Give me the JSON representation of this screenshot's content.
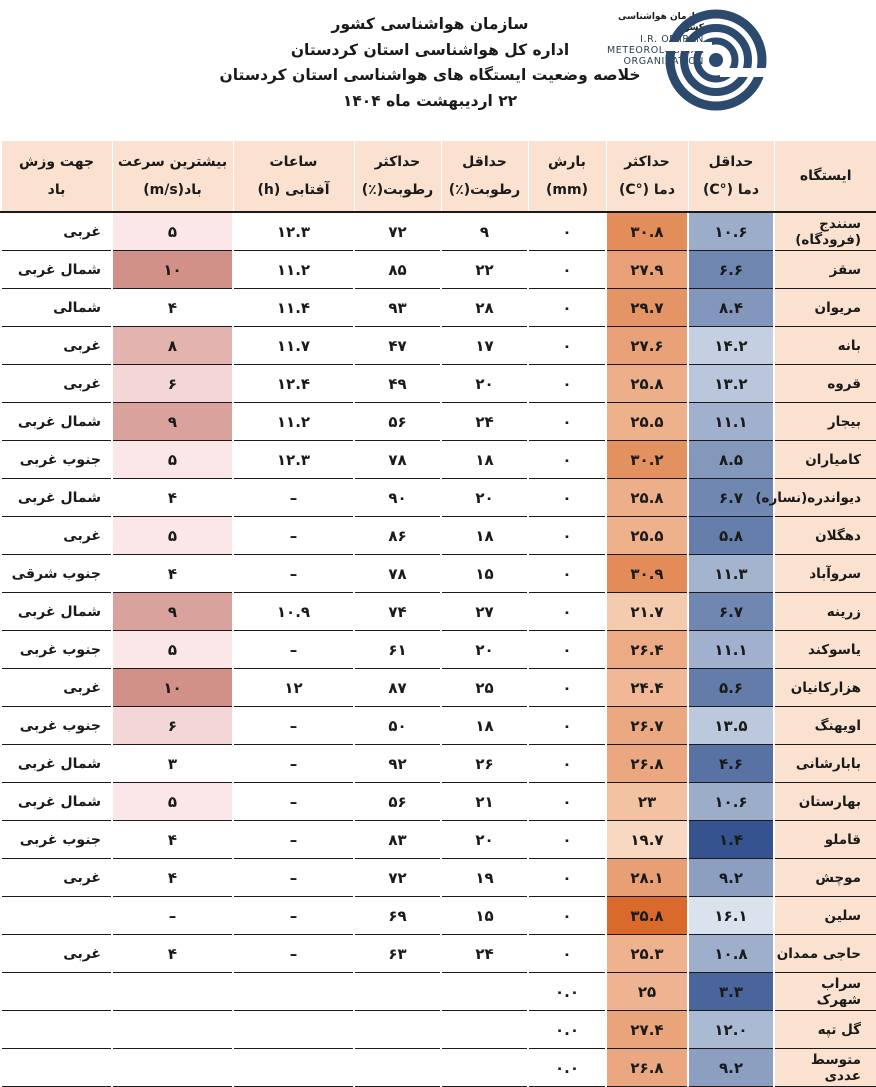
{
  "header": {
    "org": "سازمان هواشناسی کشور",
    "dept": "اداره کل هواشناسی استان کردستان",
    "title": "خلاصه وضعیت ایستگاه های هواشناسی استان کردستان",
    "date": "۲۲ اردیبهشت ماه ۱۴۰۴",
    "logo_fa": "سازمان هواشناسی کشور",
    "logo_en_1": "I.R. OF IRAN",
    "logo_en_2": "METEOROLOGICAL",
    "logo_en_3": "ORGANIZATION"
  },
  "columns": [
    {
      "l1": "ایستگاه",
      "l2": ""
    },
    {
      "l1": "حداقل",
      "l2": "دما (°C)"
    },
    {
      "l1": "حداکثر",
      "l2": "دما (°C)"
    },
    {
      "l1": "بارش",
      "l2": "(mm)"
    },
    {
      "l1": "حداقل",
      "l2": "رطوبت(٪)"
    },
    {
      "l1": "حداکثر",
      "l2": "رطوبت(٪)"
    },
    {
      "l1": "ساعات",
      "l2": "آفتابی (h)"
    },
    {
      "l1": "بیشترین سرعت",
      "l2": "باد(m/s)"
    },
    {
      "l1": "جهت وزش",
      "l2": "باد"
    }
  ],
  "colors": {
    "header_bg": "#fbe2d0",
    "min_temp_scale": [
      "#e4ebf3",
      "#2f4f8c"
    ],
    "max_temp_scale": [
      "#fce4d2",
      "#d9692a"
    ],
    "wind_scale": [
      "#fbe7e8",
      "#d19189"
    ]
  },
  "rows": [
    {
      "station": "سنندج (فرودگاه)",
      "tmin": "۱۰.۶",
      "tmax": "۳۰.۸",
      "rain": "۰",
      "rhmin": "۹",
      "rhmax": "۷۲",
      "sun": "۱۲.۳",
      "wind": "۵",
      "dir": "غربی",
      "tmin_v": 10.6,
      "tmax_v": 30.8,
      "wind_v": 5
    },
    {
      "station": "سقز",
      "tmin": "۶.۶",
      "tmax": "۲۷.۹",
      "rain": "۰",
      "rhmin": "۲۲",
      "rhmax": "۸۵",
      "sun": "۱۱.۲",
      "wind": "۱۰",
      "dir": "شمال غربی",
      "tmin_v": 6.6,
      "tmax_v": 27.9,
      "wind_v": 10
    },
    {
      "station": "مریوان",
      "tmin": "۸.۴",
      "tmax": "۲۹.۷",
      "rain": "۰",
      "rhmin": "۲۸",
      "rhmax": "۹۳",
      "sun": "۱۱.۴",
      "wind": "۴",
      "dir": "شمالی",
      "tmin_v": 8.4,
      "tmax_v": 29.7,
      "wind_v": 4
    },
    {
      "station": "بانه",
      "tmin": "۱۴.۲",
      "tmax": "۲۷.۶",
      "rain": "۰",
      "rhmin": "۱۷",
      "rhmax": "۴۷",
      "sun": "۱۱.۷",
      "wind": "۸",
      "dir": "غربی",
      "tmin_v": 14.2,
      "tmax_v": 27.6,
      "wind_v": 8
    },
    {
      "station": "قروه",
      "tmin": "۱۳.۲",
      "tmax": "۲۵.۸",
      "rain": "۰",
      "rhmin": "۲۰",
      "rhmax": "۴۹",
      "sun": "۱۲.۴",
      "wind": "۶",
      "dir": "غربی",
      "tmin_v": 13.2,
      "tmax_v": 25.8,
      "wind_v": 6
    },
    {
      "station": "بیجار",
      "tmin": "۱۱.۱",
      "tmax": "۲۵.۵",
      "rain": "۰",
      "rhmin": "۲۴",
      "rhmax": "۵۶",
      "sun": "۱۱.۲",
      "wind": "۹",
      "dir": "شمال غربی",
      "tmin_v": 11.1,
      "tmax_v": 25.5,
      "wind_v": 9
    },
    {
      "station": "کامیاران",
      "tmin": "۸.۵",
      "tmax": "۳۰.۲",
      "rain": "۰",
      "rhmin": "۱۸",
      "rhmax": "۷۸",
      "sun": "۱۲.۳",
      "wind": "۵",
      "dir": "جنوب غربی",
      "tmin_v": 8.5,
      "tmax_v": 30.2,
      "wind_v": 5
    },
    {
      "station": "دیواندره(نساره)",
      "tmin": "۶.۷",
      "tmax": "۲۵.۸",
      "rain": "۰",
      "rhmin": "۲۰",
      "rhmax": "۹۰",
      "sun": "–",
      "wind": "۴",
      "dir": "شمال غربی",
      "tmin_v": 6.7,
      "tmax_v": 25.8,
      "wind_v": 4
    },
    {
      "station": "دهگلان",
      "tmin": "۵.۸",
      "tmax": "۲۵.۵",
      "rain": "۰",
      "rhmin": "۱۸",
      "rhmax": "۸۶",
      "sun": "–",
      "wind": "۵",
      "dir": "غربی",
      "tmin_v": 5.8,
      "tmax_v": 25.5,
      "wind_v": 5
    },
    {
      "station": "سروآباد",
      "tmin": "۱۱.۳",
      "tmax": "۳۰.۹",
      "rain": "۰",
      "rhmin": "۱۵",
      "rhmax": "۷۸",
      "sun": "–",
      "wind": "۴",
      "dir": "جنوب شرقی",
      "tmin_v": 11.3,
      "tmax_v": 30.9,
      "wind_v": 4
    },
    {
      "station": "زرینه",
      "tmin": "۶.۷",
      "tmax": "۲۱.۷",
      "rain": "۰",
      "rhmin": "۲۷",
      "rhmax": "۷۴",
      "sun": "۱۰.۹",
      "wind": "۹",
      "dir": "شمال غربی",
      "tmin_v": 6.7,
      "tmax_v": 21.7,
      "wind_v": 9
    },
    {
      "station": "یاسوکند",
      "tmin": "۱۱.۱",
      "tmax": "۲۶.۴",
      "rain": "۰",
      "rhmin": "۲۰",
      "rhmax": "۶۱",
      "sun": "–",
      "wind": "۵",
      "dir": "جنوب غربی",
      "tmin_v": 11.1,
      "tmax_v": 26.4,
      "wind_v": 5
    },
    {
      "station": "هزارکانیان",
      "tmin": "۵.۶",
      "tmax": "۲۴.۴",
      "rain": "۰",
      "rhmin": "۲۵",
      "rhmax": "۸۷",
      "sun": "۱۲",
      "wind": "۱۰",
      "dir": "غربی",
      "tmin_v": 5.6,
      "tmax_v": 24.4,
      "wind_v": 10
    },
    {
      "station": "اویهنگ",
      "tmin": "۱۳.۵",
      "tmax": "۲۶.۷",
      "rain": "۰",
      "rhmin": "۱۸",
      "rhmax": "۵۰",
      "sun": "–",
      "wind": "۶",
      "dir": "جنوب غربی",
      "tmin_v": 13.5,
      "tmax_v": 26.7,
      "wind_v": 6
    },
    {
      "station": "بابارشانی",
      "tmin": "۴.۶",
      "tmax": "۲۶.۸",
      "rain": "۰",
      "rhmin": "۲۶",
      "rhmax": "۹۲",
      "sun": "–",
      "wind": "۳",
      "dir": "شمال غربی",
      "tmin_v": 4.6,
      "tmax_v": 26.8,
      "wind_v": 3
    },
    {
      "station": "بهارستان",
      "tmin": "۱۰.۶",
      "tmax": "۲۳",
      "rain": "۰",
      "rhmin": "۲۱",
      "rhmax": "۵۶",
      "sun": "–",
      "wind": "۵",
      "dir": "شمال غربی",
      "tmin_v": 10.6,
      "tmax_v": 23,
      "wind_v": 5
    },
    {
      "station": "قاملو",
      "tmin": "۱.۴",
      "tmax": "۱۹.۷",
      "rain": "۰",
      "rhmin": "۲۰",
      "rhmax": "۸۳",
      "sun": "–",
      "wind": "۴",
      "dir": "جنوب غربی",
      "tmin_v": 1.4,
      "tmax_v": 19.7,
      "wind_v": 4
    },
    {
      "station": "موچش",
      "tmin": "۹.۲",
      "tmax": "۲۸.۱",
      "rain": "۰",
      "rhmin": "۱۹",
      "rhmax": "۷۲",
      "sun": "–",
      "wind": "۴",
      "dir": "غربی",
      "tmin_v": 9.2,
      "tmax_v": 28.1,
      "wind_v": 4
    },
    {
      "station": "سلین",
      "tmin": "۱۶.۱",
      "tmax": "۳۵.۸",
      "rain": "۰",
      "rhmin": "۱۵",
      "rhmax": "۶۹",
      "sun": "–",
      "wind": "–",
      "dir": "",
      "tmin_v": 16.1,
      "tmax_v": 35.8,
      "wind_v": null
    },
    {
      "station": "حاجی ممدان",
      "tmin": "۱۰.۸",
      "tmax": "۲۵.۳",
      "rain": "۰",
      "rhmin": "۲۴",
      "rhmax": "۶۳",
      "sun": "–",
      "wind": "۴",
      "dir": "غربی",
      "tmin_v": 10.8,
      "tmax_v": 25.3,
      "wind_v": 4
    },
    {
      "station": "سراب شهرک",
      "tmin": "۳.۳",
      "tmax": "۲۵",
      "rain": "۰.۰",
      "rhmin": "",
      "rhmax": "",
      "sun": "",
      "wind": "",
      "dir": "",
      "tmin_v": 3.3,
      "tmax_v": 25,
      "wind_v": null
    },
    {
      "station": "گل تپه",
      "tmin": "۱۲.۰",
      "tmax": "۲۷.۴",
      "rain": "۰.۰",
      "rhmin": "",
      "rhmax": "",
      "sun": "",
      "wind": "",
      "dir": "",
      "tmin_v": 12.0,
      "tmax_v": 27.4,
      "wind_v": null
    },
    {
      "station": "متوسط عددی",
      "tmin": "۹.۲",
      "tmax": "۲۶.۸",
      "rain": "۰.۰",
      "rhmin": "",
      "rhmax": "",
      "sun": "",
      "wind": "",
      "dir": "",
      "tmin_v": 9.2,
      "tmax_v": 26.8,
      "wind_v": null
    }
  ]
}
